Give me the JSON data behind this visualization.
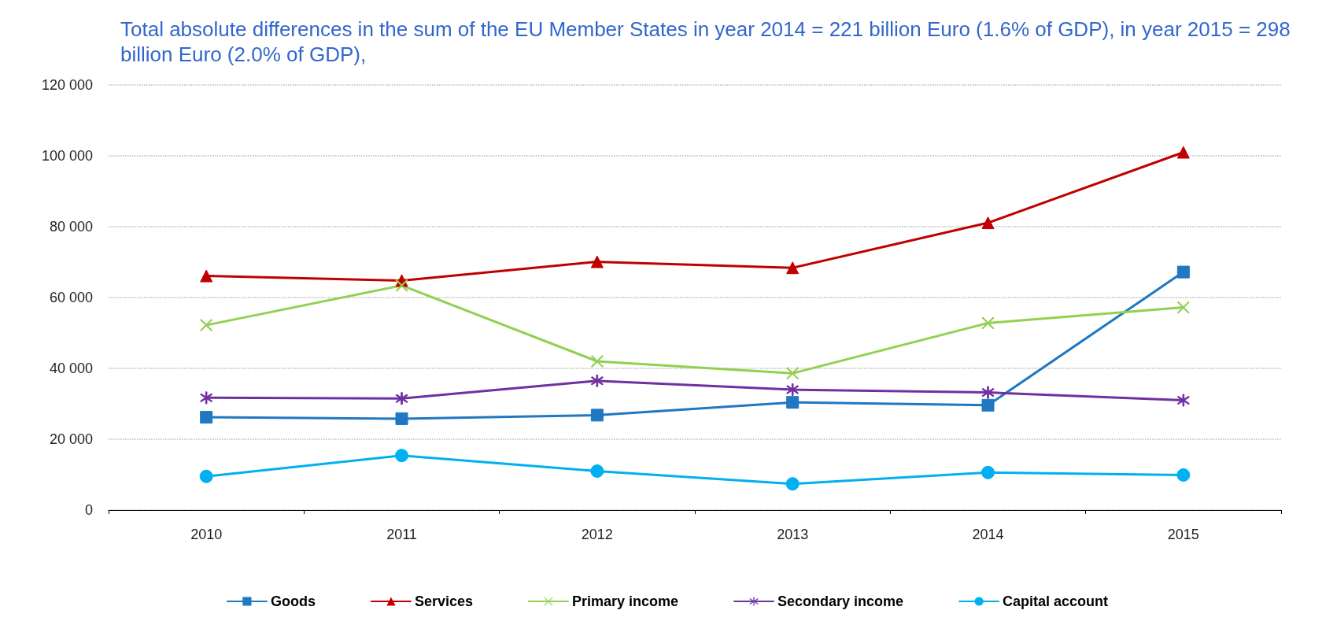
{
  "chart_data": {
    "type": "line",
    "title": "Total absolute differences in the sum of the EU Member States in year 2014 = 221 billion Euro (1.6% of GDP), in year 2015 = 298 billion Euro (2.0% of GDP),",
    "categories": [
      "2010",
      "2011",
      "2012",
      "2013",
      "2014",
      "2015"
    ],
    "series": [
      {
        "name": "Goods",
        "color": "#1f78c1",
        "marker": "square",
        "values": [
          26200,
          25800,
          26800,
          30400,
          29600,
          67200
        ]
      },
      {
        "name": "Services",
        "color": "#c00000",
        "marker": "triangle",
        "values": [
          66100,
          64800,
          70100,
          68400,
          81100,
          101000
        ]
      },
      {
        "name": "Primary income",
        "color": "#92d050",
        "marker": "cross",
        "values": [
          52200,
          63400,
          42000,
          38600,
          52800,
          57200
        ]
      },
      {
        "name": "Secondary income",
        "color": "#7030a0",
        "marker": "star",
        "values": [
          31700,
          31500,
          36500,
          34000,
          33200,
          31000
        ]
      },
      {
        "name": "Capital account",
        "color": "#00b0f0",
        "marker": "circle",
        "values": [
          9500,
          15400,
          11000,
          7400,
          10600,
          9900
        ]
      }
    ],
    "ylim": [
      0,
      120000
    ],
    "yticks": [
      {
        "value": 0,
        "label": "0"
      },
      {
        "value": 20000,
        "label": "20 000"
      },
      {
        "value": 40000,
        "label": "40 000"
      },
      {
        "value": 60000,
        "label": "60 000"
      },
      {
        "value": 80000,
        "label": "80 000"
      },
      {
        "value": 100000,
        "label": "100 000"
      },
      {
        "value": 120000,
        "label": "120 000"
      }
    ],
    "grid": "y",
    "legend": "bottom",
    "line_style": "solid"
  }
}
